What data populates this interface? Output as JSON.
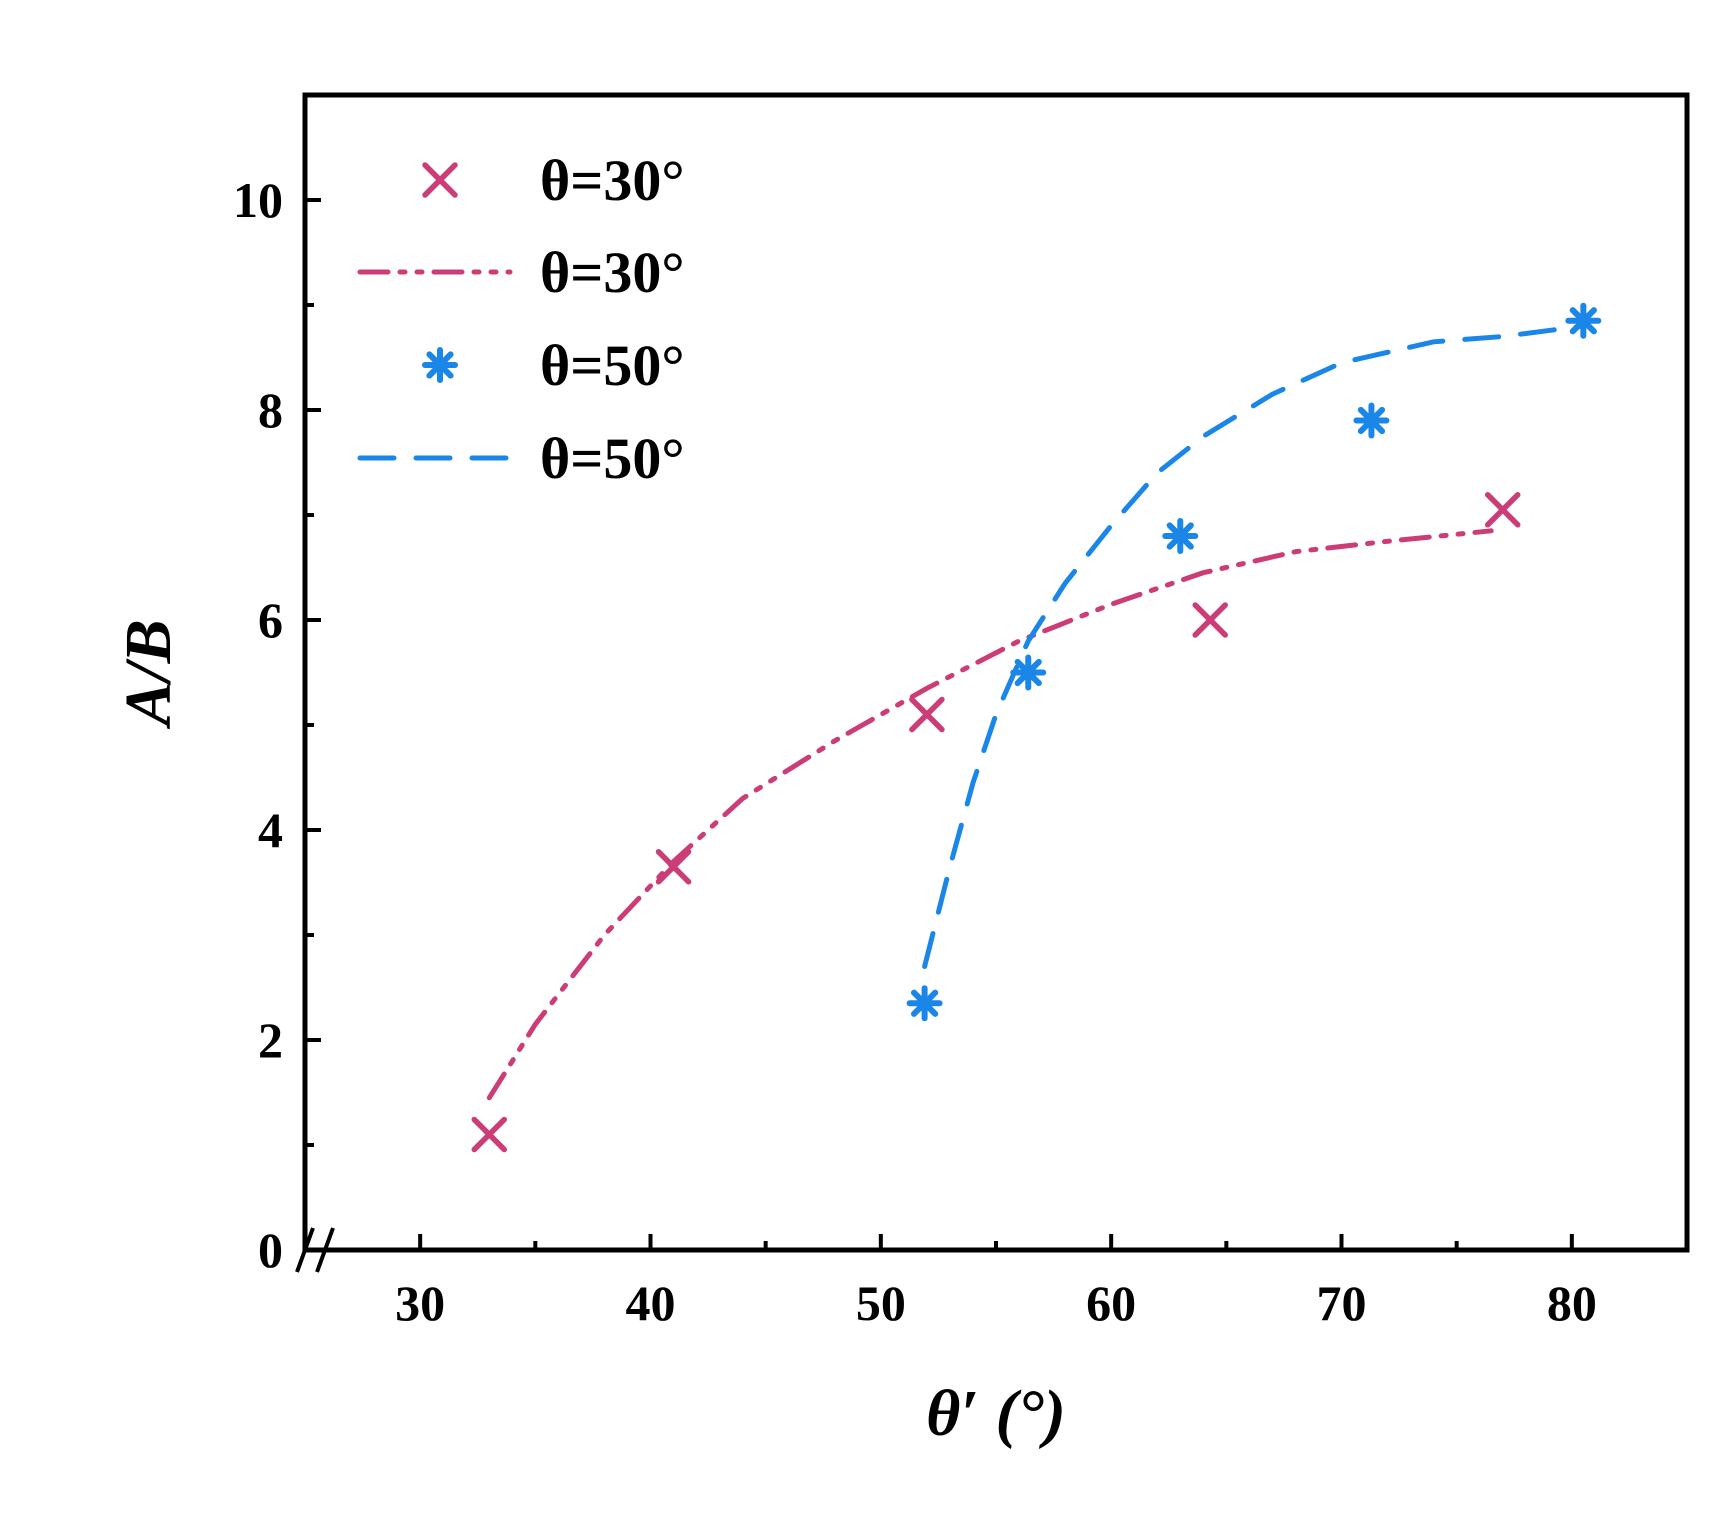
{
  "chart_data": {
    "type": "scatter",
    "xlabel": "θ′ (°)",
    "ylabel": "A/B",
    "xlim": [
      25,
      85
    ],
    "ylim": [
      0,
      11
    ],
    "x_ticks": [
      30,
      40,
      50,
      60,
      70,
      80
    ],
    "x_tick_labels": [
      "30",
      "40",
      "50",
      "60",
      "70",
      "80"
    ],
    "x_minor_ticks": [
      35,
      45,
      55,
      65,
      75
    ],
    "y_ticks": [
      0,
      2,
      4,
      6,
      8,
      10
    ],
    "y_tick_labels": [
      "0",
      "2",
      "4",
      "6",
      "8",
      "10"
    ],
    "y_minor_ticks": [
      1,
      3,
      5,
      7,
      9
    ],
    "x_axis_break": true,
    "grid": false,
    "legend_position": "top-left",
    "series": [
      {
        "name": "θ=30°",
        "kind": "markers",
        "marker": "x",
        "color": "#cc3d78",
        "x": [
          33.0,
          41.0,
          52.0,
          64.3,
          77.0
        ],
        "y": [
          1.1,
          3.65,
          5.1,
          6.0,
          7.05
        ]
      },
      {
        "name": "θ=30°",
        "kind": "line",
        "dash": "dash-dot-dot",
        "color": "#cc3d78",
        "x": [
          33.0,
          35.0,
          38.0,
          41.0,
          44.0,
          48.0,
          52.0,
          56.0,
          60.0,
          64.0,
          68.0,
          72.0,
          76.5
        ],
        "y": [
          1.45,
          2.15,
          3.0,
          3.7,
          4.3,
          4.85,
          5.35,
          5.8,
          6.15,
          6.45,
          6.65,
          6.75,
          6.85
        ]
      },
      {
        "name": "θ=50°",
        "kind": "markers",
        "marker": "asterisk",
        "color": "#1a86e8",
        "x": [
          51.9,
          56.4,
          63.0,
          71.3,
          80.5
        ],
        "y": [
          2.35,
          5.5,
          6.8,
          7.9,
          8.85
        ]
      },
      {
        "name": "θ=50°",
        "kind": "line",
        "dash": "dash",
        "color": "#1a86e8",
        "x": [
          51.9,
          53.0,
          54.0,
          55.0,
          56.4,
          58.0,
          60.0,
          62.0,
          64.0,
          67.0,
          70.0,
          74.0,
          77.0,
          80.5
        ],
        "y": [
          2.7,
          3.65,
          4.45,
          5.1,
          5.8,
          6.35,
          6.9,
          7.4,
          7.75,
          8.15,
          8.45,
          8.65,
          8.7,
          8.8
        ]
      }
    ]
  }
}
